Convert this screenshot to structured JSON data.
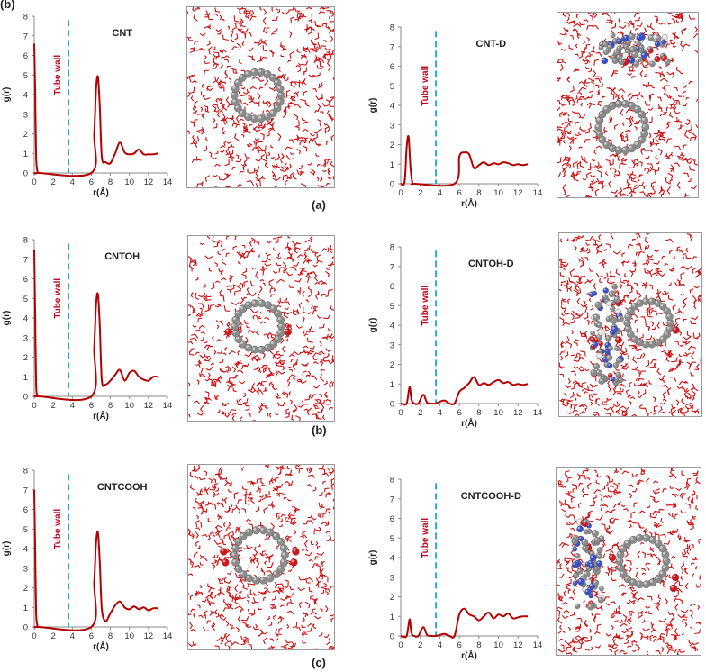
{
  "figure_labels": {
    "top_left": "(b)",
    "a": "(a)",
    "b": "(b)",
    "c": "(c)"
  },
  "colors": {
    "curve": "#b30000",
    "wall_line": "#1aa3e8",
    "wall_text": "#c0001a",
    "water": "#cc1111",
    "carbon": "#8c8c8c"
  },
  "chart_data": [
    {
      "id": "cnt",
      "type": "line",
      "title": "CNT",
      "xlabel": "r(Å)",
      "ylabel": "g(r)",
      "xlim": [
        0,
        14
      ],
      "ylim": [
        0,
        8
      ],
      "xticks": [
        0,
        2,
        4,
        6,
        8,
        10,
        12,
        14
      ],
      "yticks": [
        0,
        1,
        2,
        3,
        4,
        5,
        6,
        7,
        8
      ],
      "wall_x": 3.6,
      "wall_label": "Tube wall",
      "series": [
        {
          "name": "g(r)",
          "x": [
            0.0,
            0.1,
            0.2,
            0.35,
            0.5,
            6.0,
            6.3,
            6.5,
            6.7,
            6.9,
            7.1,
            7.5,
            8.0,
            8.5,
            9.0,
            9.5,
            10.0,
            10.5,
            11.0,
            11.5,
            12.0,
            12.5,
            13.0
          ],
          "y": [
            6.6,
            4.0,
            0.8,
            0.05,
            0.0,
            0.0,
            2.0,
            4.3,
            4.9,
            3.3,
            0.8,
            0.55,
            0.5,
            1.0,
            1.55,
            1.05,
            0.95,
            1.0,
            1.2,
            0.95,
            0.95,
            0.95,
            1.0
          ]
        }
      ]
    },
    {
      "id": "cnt-d",
      "type": "line",
      "title": "CNT-D",
      "xlabel": "r(Å)",
      "ylabel": "g(r)",
      "xlim": [
        0,
        14
      ],
      "ylim": [
        0,
        8
      ],
      "xticks": [
        0,
        2,
        4,
        6,
        8,
        10,
        12,
        14
      ],
      "yticks": [
        0,
        1,
        2,
        3,
        4,
        5,
        6,
        7,
        8
      ],
      "wall_x": 3.6,
      "wall_label": "Tube wall",
      "series": [
        {
          "name": "g(r)",
          "x": [
            0.0,
            0.4,
            0.6,
            0.8,
            1.0,
            1.2,
            1.5,
            5.5,
            6.0,
            6.5,
            7.0,
            7.5,
            8.0,
            8.5,
            9.0,
            9.5,
            10.0,
            10.5,
            11.0,
            11.5,
            12.0,
            12.5,
            13.0
          ],
          "y": [
            0.0,
            0.1,
            1.8,
            2.4,
            0.8,
            0.05,
            0.0,
            0.0,
            1.4,
            1.6,
            1.5,
            0.8,
            0.95,
            1.1,
            0.95,
            1.05,
            1.0,
            1.1,
            1.05,
            0.95,
            1.0,
            0.95,
            1.0
          ]
        }
      ]
    },
    {
      "id": "cntoh",
      "type": "line",
      "title": "CNTOH",
      "xlabel": "r(Å)",
      "ylabel": "g(r)",
      "xlim": [
        0,
        14
      ],
      "ylim": [
        0,
        8
      ],
      "xticks": [
        0,
        2,
        4,
        6,
        8,
        10,
        12,
        14
      ],
      "yticks": [
        0,
        1,
        2,
        3,
        4,
        5,
        6,
        7,
        8
      ],
      "wall_x": 3.6,
      "wall_label": "Tube wall",
      "series": [
        {
          "name": "g(r)",
          "x": [
            0.0,
            0.1,
            0.2,
            0.35,
            0.5,
            6.0,
            6.3,
            6.5,
            6.7,
            6.9,
            7.1,
            7.5,
            8.0,
            8.5,
            9.0,
            9.5,
            10.0,
            10.5,
            11.0,
            11.5,
            12.0,
            12.5,
            13.0
          ],
          "y": [
            7.5,
            4.0,
            0.6,
            0.05,
            0.0,
            0.0,
            2.5,
            4.7,
            5.2,
            3.5,
            0.8,
            0.6,
            0.8,
            1.1,
            1.35,
            0.8,
            1.2,
            1.3,
            1.0,
            0.85,
            0.8,
            1.0,
            1.0
          ]
        }
      ]
    },
    {
      "id": "cntoh-d",
      "type": "line",
      "title": "CNTOH-D",
      "xlabel": "r(Å)",
      "ylabel": "g(r)",
      "xlim": [
        0,
        14
      ],
      "ylim": [
        0,
        8
      ],
      "xticks": [
        0,
        2,
        4,
        6,
        8,
        10,
        12,
        14
      ],
      "yticks": [
        0,
        1,
        2,
        3,
        4,
        5,
        6,
        7,
        8
      ],
      "wall_x": 3.6,
      "wall_label": "Tube wall",
      "series": [
        {
          "name": "g(r)",
          "x": [
            0.0,
            0.6,
            0.9,
            1.1,
            1.4,
            1.8,
            2.3,
            2.7,
            3.2,
            3.6,
            4.0,
            4.5,
            5.0,
            5.5,
            6.0,
            6.5,
            7.0,
            7.5,
            8.0,
            8.5,
            9.0,
            9.5,
            10.0,
            10.5,
            11.0,
            11.5,
            12.0,
            12.5,
            13.0
          ],
          "y": [
            0.0,
            0.0,
            0.85,
            0.2,
            0.0,
            0.0,
            0.45,
            0.05,
            0.0,
            0.0,
            0.1,
            0.15,
            0.0,
            0.0,
            0.6,
            0.8,
            1.05,
            1.35,
            0.95,
            1.05,
            0.95,
            1.1,
            1.2,
            1.05,
            1.1,
            0.95,
            1.0,
            0.95,
            1.0
          ]
        }
      ]
    },
    {
      "id": "cntcooh",
      "type": "line",
      "title": "CNTCOOH",
      "xlabel": "r(Å)",
      "ylabel": "g(r)",
      "xlim": [
        0,
        14
      ],
      "ylim": [
        0,
        8
      ],
      "xticks": [
        0,
        2,
        4,
        6,
        8,
        10,
        12,
        14
      ],
      "yticks": [
        0,
        1,
        2,
        3,
        4,
        5,
        6,
        7,
        8
      ],
      "wall_x": 3.6,
      "wall_label": "Tube wall",
      "series": [
        {
          "name": "g(r)",
          "x": [
            0.0,
            0.1,
            0.2,
            0.35,
            0.5,
            6.0,
            6.3,
            6.5,
            6.7,
            6.9,
            7.1,
            7.5,
            8.0,
            8.5,
            9.0,
            9.5,
            10.0,
            10.5,
            11.0,
            11.5,
            12.0,
            12.5,
            13.0
          ],
          "y": [
            7.0,
            3.8,
            0.7,
            0.05,
            0.0,
            0.0,
            2.3,
            4.3,
            4.8,
            3.2,
            0.9,
            0.3,
            0.7,
            1.1,
            1.3,
            1.0,
            0.9,
            1.05,
            0.9,
            1.0,
            0.85,
            0.95,
            0.95
          ]
        }
      ]
    },
    {
      "id": "cntcooh-d",
      "type": "line",
      "title": "CNTCOOH-D",
      "xlabel": "r(Å)",
      "ylabel": "g(r)",
      "xlim": [
        0,
        14
      ],
      "ylim": [
        0,
        8
      ],
      "xticks": [
        0,
        2,
        4,
        6,
        8,
        10,
        12,
        14
      ],
      "yticks": [
        0,
        1,
        2,
        3,
        4,
        5,
        6,
        7,
        8
      ],
      "wall_x": 3.6,
      "wall_label": "Tube wall",
      "series": [
        {
          "name": "g(r)",
          "x": [
            0.0,
            0.6,
            0.9,
            1.1,
            1.4,
            1.8,
            2.3,
            2.7,
            3.2,
            3.6,
            4.0,
            4.5,
            5.0,
            5.5,
            6.0,
            6.5,
            7.0,
            7.5,
            8.0,
            8.5,
            9.0,
            9.5,
            10.0,
            10.5,
            11.0,
            11.5,
            12.0,
            12.5,
            13.0
          ],
          "y": [
            0.0,
            0.0,
            0.85,
            0.15,
            0.0,
            0.0,
            0.45,
            0.05,
            0.0,
            0.0,
            0.05,
            0.1,
            0.0,
            0.0,
            1.1,
            1.4,
            1.1,
            1.0,
            0.8,
            1.0,
            1.2,
            0.9,
            1.1,
            1.0,
            1.15,
            0.9,
            0.95,
            1.0,
            1.0
          ]
        }
      ]
    }
  ]
}
